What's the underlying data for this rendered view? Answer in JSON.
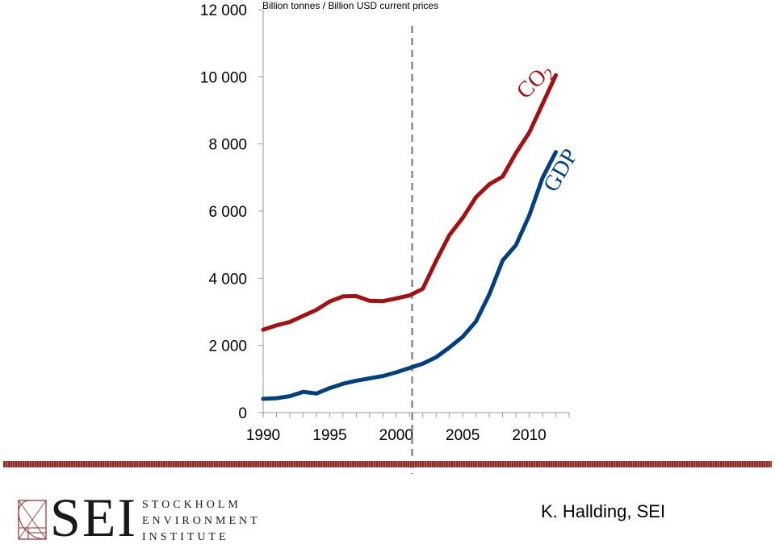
{
  "chart_data": {
    "type": "line",
    "unit_label": "Billion tonnes / Billion USD current prices",
    "x": [
      1990,
      1991,
      1992,
      1993,
      1994,
      1995,
      1996,
      1997,
      1998,
      1999,
      2000,
      2001,
      2002,
      2003,
      2004,
      2005,
      2006,
      2007,
      2008,
      2009,
      2010,
      2011,
      2012
    ],
    "xticks": [
      "1990",
      "1995",
      "2000",
      "2005",
      "2010"
    ],
    "xtick_values": [
      1990,
      1995,
      2000,
      2005,
      2010
    ],
    "xlim": [
      1990,
      2013
    ],
    "yticks": [
      "0",
      "2 000",
      "4 000",
      "6 000",
      "8 000",
      "10 000",
      "12 000"
    ],
    "ytick_values": [
      0,
      2000,
      4000,
      6000,
      8000,
      10000,
      12000
    ],
    "ylim": [
      0,
      12000
    ],
    "vline_x": 2001.2,
    "grid": false,
    "series": [
      {
        "name": "CO2",
        "color": "#a50f10",
        "values": [
          2470,
          2600,
          2700,
          2880,
          3060,
          3310,
          3460,
          3470,
          3330,
          3320,
          3400,
          3490,
          3690,
          4520,
          5290,
          5800,
          6420,
          6800,
          7030,
          7730,
          8340,
          9190,
          10050
        ]
      },
      {
        "name": "GDP",
        "color": "#004080",
        "values": [
          410,
          430,
          490,
          620,
          570,
          730,
          860,
          950,
          1020,
          1090,
          1200,
          1330,
          1460,
          1650,
          1940,
          2260,
          2720,
          3520,
          4530,
          4990,
          5870,
          6990,
          7760
        ]
      }
    ]
  },
  "series_labels": {
    "co2_main": "CO",
    "co2_sub": "2",
    "gdp": "GDP"
  },
  "logo": {
    "mark": "golden-spiral-icon",
    "name": "SEI",
    "lines": [
      "STOCKHOLM",
      "ENVIRONMENT",
      "INSTITUTE"
    ]
  },
  "author": "K. Hallding, SEI"
}
